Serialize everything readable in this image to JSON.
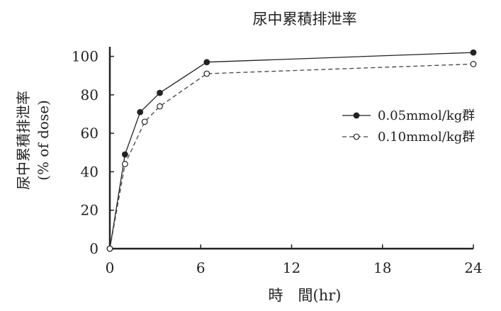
{
  "chart_data": {
    "type": "line",
    "title": "尿中累積排泄率",
    "xlabel": "時　間(hr)",
    "ylabel_line1": "尿中累積排泄率",
    "ylabel_line2": "(% of dose)",
    "xlim": [
      0,
      24
    ],
    "ylim": [
      0,
      105
    ],
    "xticks": [
      0,
      6,
      12,
      18,
      24
    ],
    "yticks": [
      0,
      20,
      40,
      60,
      80,
      100
    ],
    "grid": false,
    "legend_position": "right",
    "series": [
      {
        "name": "0.05mmol/kg群",
        "marker": "filled-circle",
        "line_style": "solid",
        "color": "#222222",
        "x": [
          0,
          1,
          2,
          3.3,
          6.4,
          24
        ],
        "y": [
          0,
          49,
          71,
          81,
          97,
          102
        ]
      },
      {
        "name": "0.10mmol/kg群",
        "marker": "open-circle",
        "line_style": "dashed",
        "color": "#444444",
        "x": [
          0,
          1,
          2.3,
          3.3,
          6.4,
          24
        ],
        "y": [
          0,
          44,
          66,
          74,
          91,
          96
        ]
      }
    ]
  }
}
